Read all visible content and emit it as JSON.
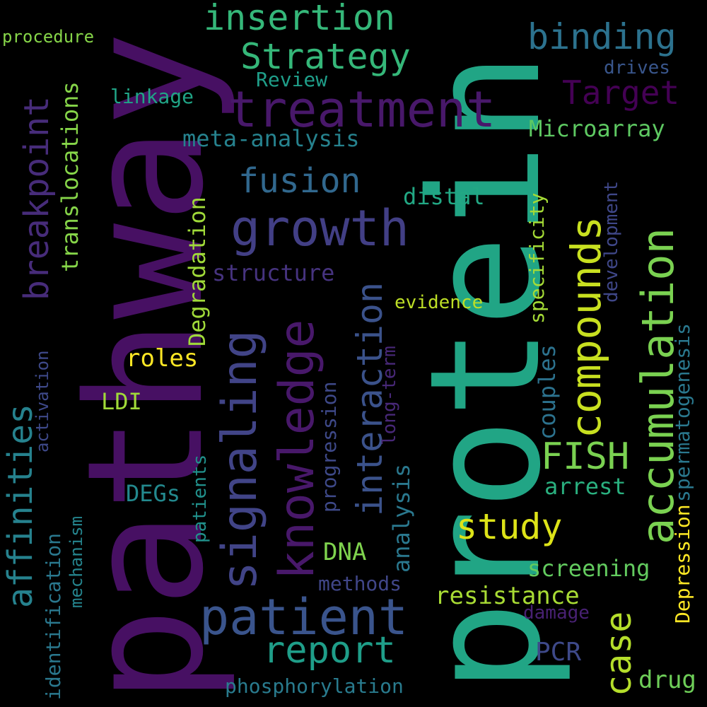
{
  "palette": {
    "background": "#000000",
    "dark_purple": "#440154",
    "purple": "#46327e",
    "indigo": "#3b528b",
    "blue": "#2c728e",
    "teal": "#21918c",
    "green_teal": "#28ae80",
    "green": "#5ec962",
    "lime": "#addc30",
    "yellow": "#fde725"
  },
  "words": [
    {
      "key": "protein",
      "text": "protein",
      "color": "#21a585"
    },
    {
      "key": "pathway",
      "text": "pathway",
      "color": "#471063"
    },
    {
      "key": "treatment",
      "text": "treatment",
      "color": "#48186a"
    },
    {
      "key": "growth",
      "text": "growth",
      "color": "#423f85"
    },
    {
      "key": "patient",
      "text": "patient",
      "color": "#3a548c"
    },
    {
      "key": "signaling",
      "text": "signaling",
      "color": "#414487"
    },
    {
      "key": "knowledge",
      "text": "knowledge",
      "color": "#48186a"
    },
    {
      "key": "accumulation",
      "text": "accumulation",
      "color": "#7ad151"
    },
    {
      "key": "compounds",
      "text": "compounds",
      "color": "#c8e020"
    },
    {
      "key": "insertion",
      "text": "insertion",
      "color": "#35b779"
    },
    {
      "key": "strategy",
      "text": "Strategy",
      "color": "#35b779"
    },
    {
      "key": "binding",
      "text": "binding",
      "color": "#2c728e"
    },
    {
      "key": "target",
      "text": "Target",
      "color": "#440154"
    },
    {
      "key": "microarray",
      "text": "Microarray",
      "color": "#5ec962"
    },
    {
      "key": "fusion",
      "text": "fusion",
      "color": "#31688e"
    },
    {
      "key": "interaction",
      "text": "interaction",
      "color": "#3b528b"
    },
    {
      "key": "study",
      "text": "study",
      "color": "#dde318"
    },
    {
      "key": "report",
      "text": "report",
      "color": "#1f9e89"
    },
    {
      "key": "fish",
      "text": "FISH",
      "color": "#7ad151"
    },
    {
      "key": "case",
      "text": "case",
      "color": "#b5de2b"
    },
    {
      "key": "breakpoint",
      "text": "breakpoint",
      "color": "#472c7a"
    },
    {
      "key": "affinities",
      "text": "affinities",
      "color": "#26828e"
    },
    {
      "key": "translocations",
      "text": "translocations",
      "color": "#86d549"
    },
    {
      "key": "identification",
      "text": "identification",
      "color": "#2a788e"
    },
    {
      "key": "mechanism",
      "text": "mechanism",
      "color": "#25858e"
    },
    {
      "key": "activation",
      "text": "activation",
      "color": "#3e4989"
    },
    {
      "key": "procedure",
      "text": "procedure",
      "color": "#86d549"
    },
    {
      "key": "review",
      "text": "Review",
      "color": "#1f9e89"
    },
    {
      "key": "linkage",
      "text": "linkage",
      "color": "#20a486"
    },
    {
      "key": "drives",
      "text": "drives",
      "color": "#39568c"
    },
    {
      "key": "meta_analysis",
      "text": "meta-analysis",
      "color": "#26828e"
    },
    {
      "key": "distal",
      "text": "distal",
      "color": "#22a884"
    },
    {
      "key": "structure",
      "text": "structure",
      "color": "#46337f"
    },
    {
      "key": "degradation",
      "text": "Degradation",
      "color": "#a0da39"
    },
    {
      "key": "roles",
      "text": "roles",
      "color": "#fde725"
    },
    {
      "key": "ldi",
      "text": "LDI",
      "color": "#a0da39"
    },
    {
      "key": "evidence",
      "text": "evidence",
      "color": "#bddf26"
    },
    {
      "key": "specificity",
      "text": "specificity",
      "color": "#a5db36"
    },
    {
      "key": "development",
      "text": "development",
      "color": "#3f4788"
    },
    {
      "key": "spermatogenesis",
      "text": "spermatogenesis",
      "color": "#2a788e"
    },
    {
      "key": "depression",
      "text": "Depression",
      "color": "#fde725"
    },
    {
      "key": "couples",
      "text": "couples",
      "color": "#2c728e"
    },
    {
      "key": "long_term",
      "text": "long‐term",
      "color": "#482878"
    },
    {
      "key": "progression",
      "text": "progression",
      "color": "#3e4989"
    },
    {
      "key": "analysis",
      "text": "analysis",
      "color": "#2a788e"
    },
    {
      "key": "patients",
      "text": "patients",
      "color": "#21918c"
    },
    {
      "key": "degs",
      "text": "DEGs",
      "color": "#23898e"
    },
    {
      "key": "dna",
      "text": "DNA",
      "color": "#7fd34e"
    },
    {
      "key": "arrest",
      "text": "arrest",
      "color": "#2ab07f"
    },
    {
      "key": "screening",
      "text": "screening",
      "color": "#63cb5f"
    },
    {
      "key": "methods",
      "text": "methods",
      "color": "#404688"
    },
    {
      "key": "resistance",
      "text": "resistance",
      "color": "#a8db34"
    },
    {
      "key": "damage",
      "text": "damage",
      "color": "#482173"
    },
    {
      "key": "pcr",
      "text": "PCR",
      "color": "#3e4989"
    },
    {
      "key": "drug",
      "text": "drug",
      "color": "#6ece58"
    },
    {
      "key": "phosphorylation",
      "text": "phosphorylation",
      "color": "#297b8e"
    }
  ]
}
